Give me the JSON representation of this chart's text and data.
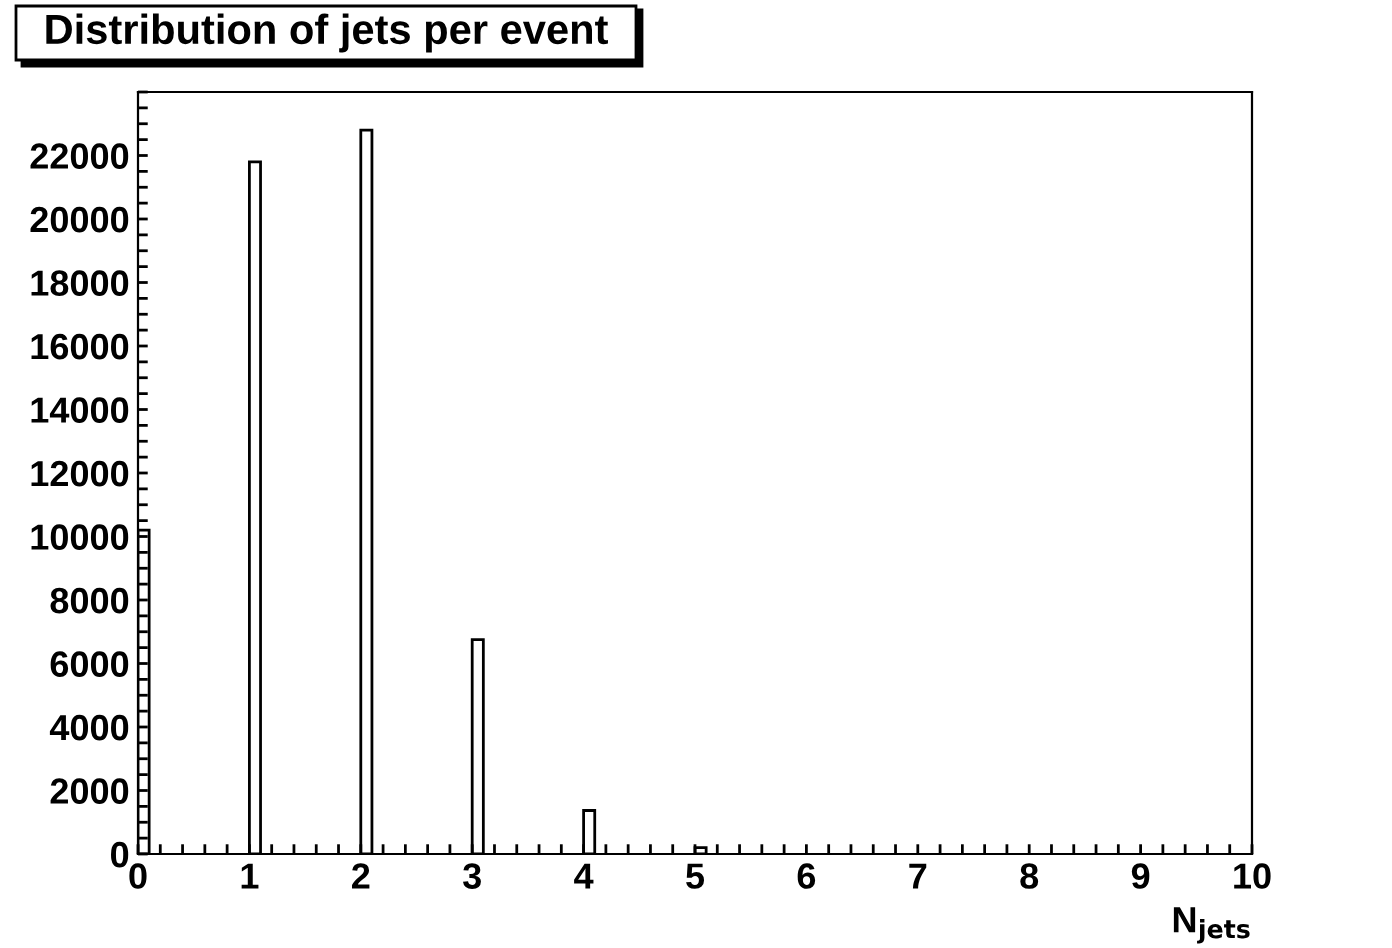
{
  "chart_data": {
    "type": "histogram",
    "title": "Distribution of jets per event",
    "xlabel": "N$_{jets}$",
    "bins": [
      0,
      0.1,
      0.2,
      0.3,
      0.4,
      0.5,
      0.6,
      0.7,
      0.8,
      0.9,
      1,
      1.1,
      1.2,
      1.3,
      1.4,
      1.5,
      1.6,
      1.7,
      1.8,
      1.9,
      2,
      2.1,
      2.2,
      2.3,
      2.4,
      2.5,
      2.6,
      2.7,
      2.8,
      2.9,
      3,
      3.1,
      3.2,
      3.3,
      3.4,
      3.5,
      3.6,
      3.7,
      3.8,
      3.9,
      4,
      4.1,
      4.2,
      4.3,
      4.4,
      4.5,
      4.6,
      4.7,
      4.8,
      4.9,
      5,
      5.1,
      5.2,
      5.3,
      5.4,
      5.5,
      5.6,
      5.7,
      5.8,
      5.9,
      6,
      6.1,
      6.2,
      6.3,
      6.4,
      6.5,
      6.6,
      6.7,
      6.8,
      6.9,
      7,
      7.1,
      7.2,
      7.3,
      7.4,
      7.5,
      7.6,
      7.7,
      7.8,
      7.9,
      8,
      8.1,
      8.2,
      8.3,
      8.4,
      8.5,
      8.6,
      8.7,
      8.8,
      8.9,
      9,
      9.1,
      9.2,
      9.3,
      9.4,
      9.5,
      9.6,
      9.7,
      9.8,
      9.9,
      10
    ],
    "values": [
      10200,
      0,
      0,
      0,
      0,
      0,
      0,
      0,
      0,
      0,
      21800,
      0,
      0,
      0,
      0,
      0,
      0,
      0,
      0,
      0,
      22800,
      0,
      0,
      0,
      0,
      0,
      0,
      0,
      0,
      0,
      6750,
      0,
      0,
      0,
      0,
      0,
      0,
      0,
      0,
      0,
      1370,
      0,
      0,
      0,
      0,
      0,
      0,
      0,
      0,
      0,
      200,
      0,
      0,
      0,
      0,
      0,
      0,
      0,
      0,
      0,
      0,
      0,
      0,
      0,
      0,
      0,
      0,
      0,
      0,
      0,
      0,
      0,
      0,
      0,
      0,
      0,
      0,
      0,
      0,
      0,
      0,
      0,
      0,
      0,
      0,
      0,
      0,
      0,
      0,
      0,
      0,
      0,
      0,
      0,
      0,
      0,
      0,
      0,
      0,
      0
    ],
    "color": "#ffffff",
    "xlim": [
      0,
      10
    ],
    "ylim": [
      0,
      24000
    ],
    "xticks": [
      0,
      {
        "value": 0.2,
        "label": null
      },
      {
        "value": 0.4,
        "label": null
      },
      {
        "value": 0.6,
        "label": null
      },
      {
        "value": 0.8,
        "label": null
      },
      1,
      {
        "value": 1.2,
        "label": null
      },
      {
        "value": 1.4,
        "label": null
      },
      {
        "value": 1.6,
        "label": null
      },
      {
        "value": 1.8,
        "label": null
      },
      2,
      {
        "value": 2.2,
        "label": null
      },
      {
        "value": 2.4,
        "label": null
      },
      {
        "value": 2.6,
        "label": null
      },
      {
        "value": 2.8,
        "label": null
      },
      3,
      {
        "value": 3.2,
        "label": null
      },
      {
        "value": 3.4,
        "label": null
      },
      {
        "value": 3.6,
        "label": null
      },
      {
        "value": 3.8,
        "label": null
      },
      4,
      {
        "value": 4.2,
        "label": null
      },
      {
        "value": 4.4,
        "label": null
      },
      {
        "value": 4.6,
        "label": null
      },
      {
        "value": 4.8,
        "label": null
      },
      5,
      {
        "value": 5.2,
        "label": null
      },
      {
        "value": 5.4,
        "label": null
      },
      {
        "value": 5.6,
        "label": null
      },
      {
        "value": 5.8,
        "label": null
      },
      6,
      {
        "value": 6.2,
        "label": null
      },
      {
        "value": 6.4,
        "label": null
      },
      {
        "value": 6.6,
        "label": null
      },
      {
        "value": 6.8,
        "label": null
      },
      7,
      {
        "value": 7.2,
        "label": null
      },
      {
        "value": 7.4,
        "label": null
      },
      {
        "value": 7.6,
        "label": null
      },
      {
        "value": 7.8,
        "label": null
      },
      8,
      {
        "value": 8.2,
        "label": null
      },
      {
        "value": 8.4,
        "label": null
      },
      {
        "value": 8.6,
        "label": null
      },
      {
        "value": 8.8,
        "label": null
      },
      9,
      {
        "value": 9.2,
        "label": null
      },
      {
        "value": 9.4,
        "label": null
      },
      {
        "value": 9.6,
        "label": null
      },
      {
        "value": 9.8,
        "label": null
      },
      10
    ],
    "yticks": [
      0,
      {
        "value": 500,
        "label": null
      },
      {
        "value": 1000,
        "label": null
      },
      {
        "value": 1500,
        "label": null
      },
      2000,
      {
        "value": 2500,
        "label": null
      },
      {
        "value": 3000,
        "label": null
      },
      {
        "value": 3500,
        "label": null
      },
      4000,
      {
        "value": 4500,
        "label": null
      },
      {
        "value": 5000,
        "label": null
      },
      {
        "value": 5500,
        "label": null
      },
      6000,
      {
        "value": 6500,
        "label": null
      },
      {
        "value": 7000,
        "label": null
      },
      {
        "value": 7500,
        "label": null
      },
      8000,
      {
        "value": 8500,
        "label": null
      },
      {
        "value": 9000,
        "label": null
      },
      {
        "value": 9500,
        "label": null
      },
      10000,
      {
        "value": 10500,
        "label": null
      },
      {
        "value": 11000,
        "label": null
      },
      {
        "value": 11500,
        "label": null
      },
      12000,
      {
        "value": 12500,
        "label": null
      },
      {
        "value": 13000,
        "label": null
      },
      {
        "value": 13500,
        "label": null
      },
      14000,
      {
        "value": 14500,
        "label": null
      },
      {
        "value": 15000,
        "label": null
      },
      {
        "value": 15500,
        "label": null
      },
      16000,
      {
        "value": 16500,
        "label": null
      },
      {
        "value": 17000,
        "label": null
      },
      {
        "value": 17500,
        "label": null
      },
      18000,
      {
        "value": 18500,
        "label": null
      },
      {
        "value": 19000,
        "label": null
      },
      {
        "value": 19500,
        "label": null
      },
      20000,
      {
        "value": 20500,
        "label": null
      },
      {
        "value": 21000,
        "label": null
      },
      {
        "value": 21500,
        "label": null
      },
      22000,
      {
        "value": 22500,
        "label": null
      },
      {
        "value": 23000,
        "label": null
      },
      {
        "value": 23500,
        "label": null
      },
      {
        "value": 24000,
        "label": null
      }
    ],
    "grid": false
  }
}
